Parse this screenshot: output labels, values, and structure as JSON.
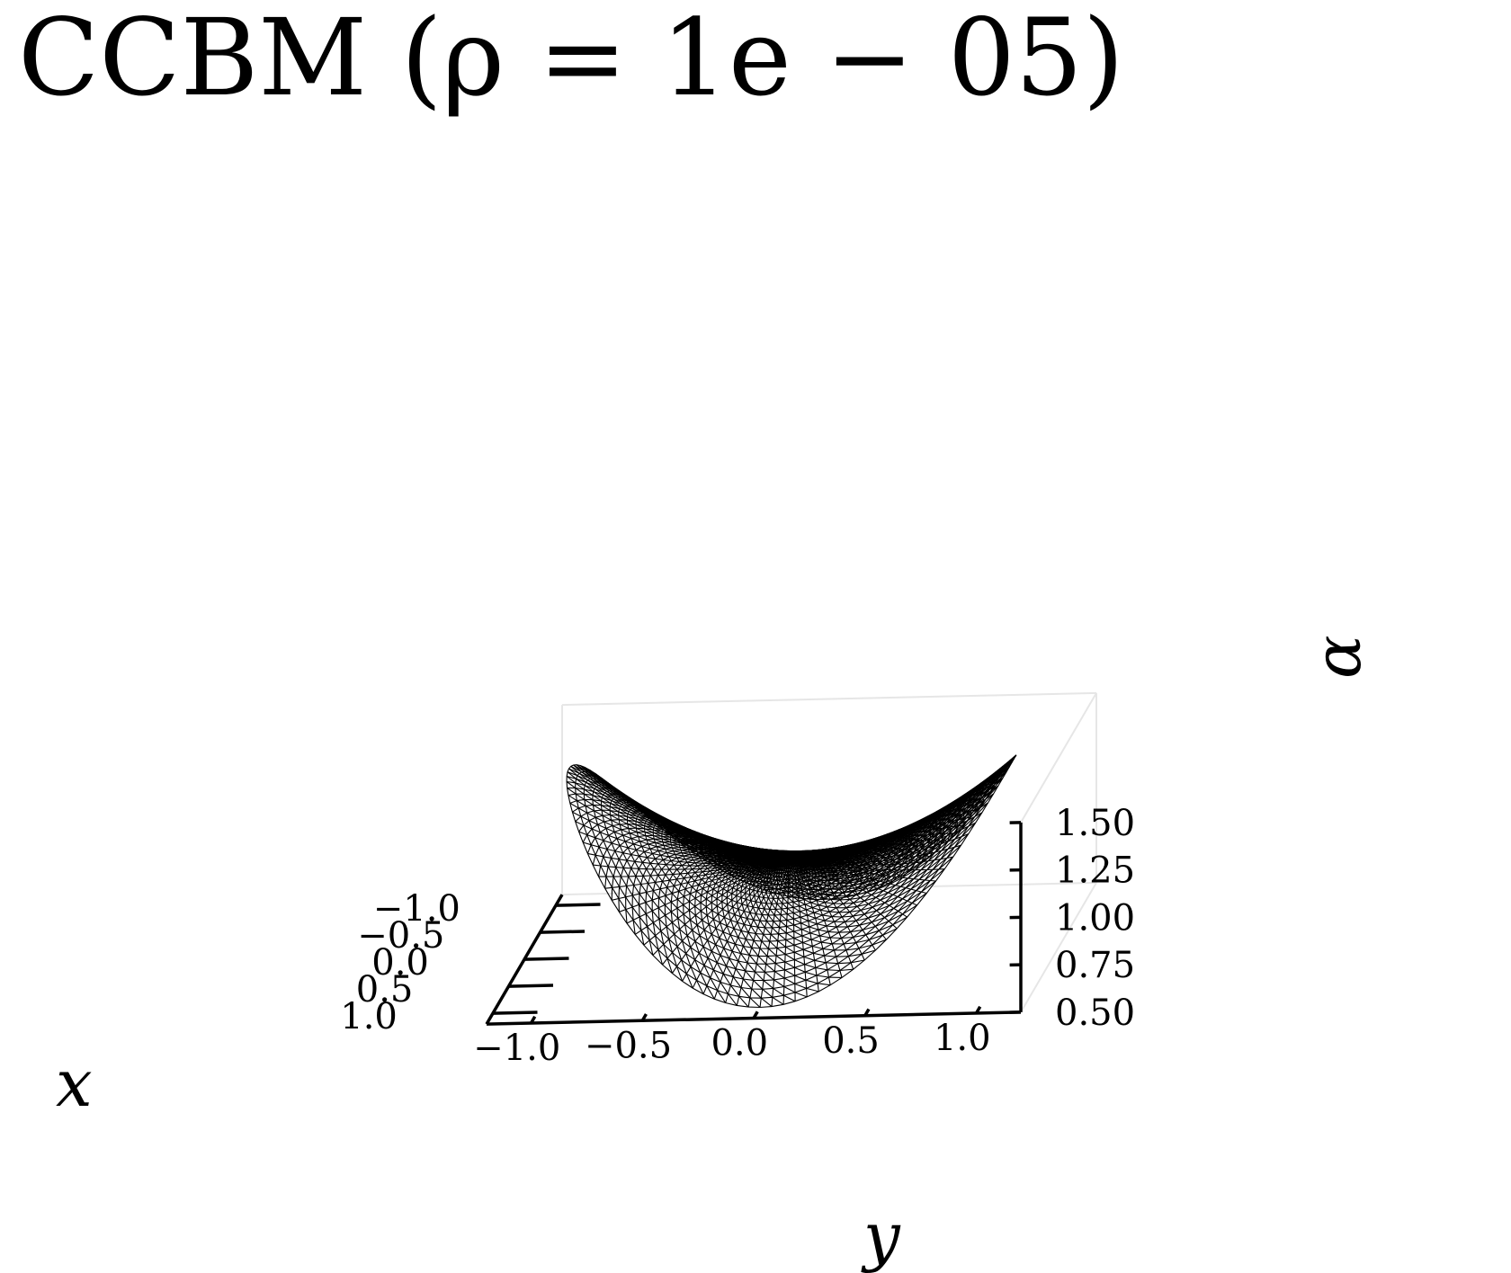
{
  "chart_data": {
    "type": "surface-wireframe-3d",
    "title": "CCBM (ρ = 1e − 05)",
    "xlabel": "x",
    "ylabel": "y",
    "zlabel": "α",
    "x_ticks": [
      "−1.0",
      "−0.5",
      "0.0",
      "0.5",
      "1.0"
    ],
    "y_ticks": [
      "−1.0",
      "−0.5",
      "0.0",
      "0.5",
      "1.0"
    ],
    "z_ticks": [
      "0.50",
      "0.75",
      "1.00",
      "1.25",
      "1.50"
    ],
    "xlim": [
      -1.2,
      1.2
    ],
    "ylim": [
      -1.2,
      1.2
    ],
    "zlim": [
      0.5,
      1.5
    ],
    "surface": "saddle alpha = 1 + 0.5*(y^2 - x^2) over the unit disk",
    "grid": false,
    "mesh_color": "#000000",
    "pane_edge_color": "#e6e6e6"
  }
}
